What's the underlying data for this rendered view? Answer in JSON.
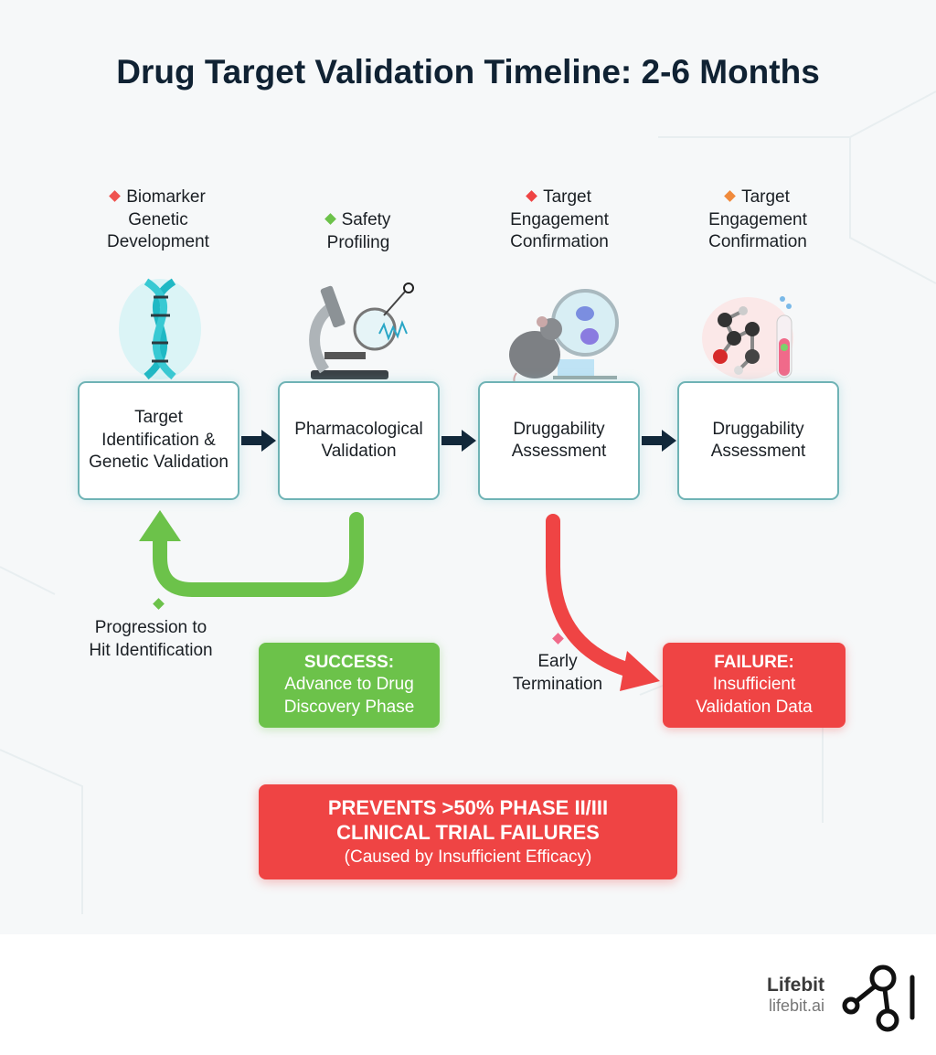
{
  "title": "Drug Target Validation Timeline: 2-6 Months",
  "stages": [
    {
      "label_lines": [
        "Biomarker",
        "Genetic",
        "Development"
      ],
      "bullet_color": "#ef5350",
      "illustration": "dna-helix",
      "box_lines": [
        "Target",
        "Identification &",
        "Genetic Validation"
      ]
    },
    {
      "label_lines": [
        "Safety",
        "Profiling"
      ],
      "bullet_color": "#6cc24a",
      "illustration": "microscope",
      "box_lines": [
        "Pharmacological",
        "Validation"
      ]
    },
    {
      "label_lines": [
        "Target",
        "Engagement",
        "Confirmation"
      ],
      "bullet_color": "#ef4444",
      "illustration": "lab-mouse",
      "box_lines": [
        "Druggability",
        "Assessment"
      ]
    },
    {
      "label_lines": [
        "Target",
        "Engagement",
        "Confirmation"
      ],
      "bullet_color": "#f08a3c",
      "illustration": "molecule-test-tube",
      "box_lines": [
        "Druggability",
        "Assessment"
      ]
    }
  ],
  "progression": {
    "lines": [
      "Progression to",
      "Hit Identification"
    ],
    "color": "#6cc24a"
  },
  "success": {
    "title": "SUCCESS:",
    "lines": [
      "Advance to Drug",
      "Discovery Phase"
    ],
    "color": "#6cc24a"
  },
  "termination": {
    "lines": [
      "Early",
      "Termination"
    ],
    "color": "#ef4444"
  },
  "failure": {
    "title": "FAILURE:",
    "lines": [
      "Insufficient",
      "Validation Data"
    ],
    "color": "#ef4444"
  },
  "banner": {
    "lines": [
      "PREVENTS >50% PHASE II/III",
      "CLINICAL TRIAL FAILURES"
    ],
    "sub": "(Caused by Insufficient Efficacy)",
    "color": "#ef4444"
  },
  "footer": {
    "brand": "Lifebit",
    "url": "lifebit.ai"
  }
}
